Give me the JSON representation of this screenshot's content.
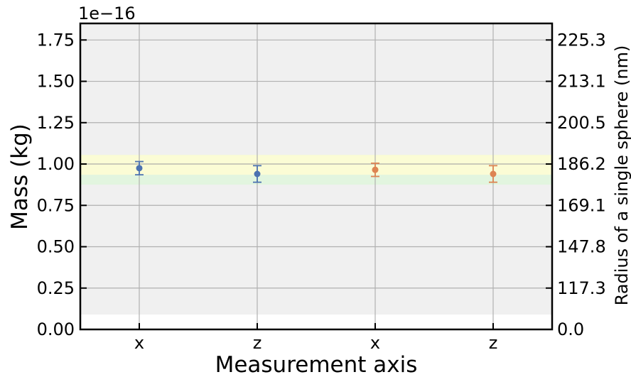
{
  "chart_data": {
    "type": "scatter",
    "title": "",
    "xlabel": "Measurement axis",
    "ylabel": "Mass (kg)",
    "y2label": "Radius of a single sphere (nm)",
    "offset_text": "1e−16",
    "categories": [
      "x",
      "z",
      "x",
      "z"
    ],
    "ylim": [
      0.0,
      1.85
    ],
    "yticks": [
      "0.00",
      "0.25",
      "0.50",
      "0.75",
      "1.00",
      "1.25",
      "1.50",
      "1.75"
    ],
    "y2ticks": [
      "0.0",
      "117.3",
      "147.8",
      "169.1",
      "186.2",
      "200.5",
      "213.1",
      "225.3"
    ],
    "grid": true,
    "series": [
      {
        "color": "#4c72b0",
        "points": [
          {
            "category_index": 0,
            "value": 0.975,
            "err": 0.04
          },
          {
            "category_index": 1,
            "value": 0.94,
            "err": 0.05
          }
        ]
      },
      {
        "color": "#dd8452",
        "points": [
          {
            "category_index": 2,
            "value": 0.965,
            "err": 0.04
          },
          {
            "category_index": 3,
            "value": 0.94,
            "err": 0.05
          }
        ]
      }
    ],
    "bands": [
      {
        "from": 0.09,
        "to": 1.85,
        "color": "#f0f0f0"
      },
      {
        "from": 0.875,
        "to": 1.055,
        "color": "#e2f5df"
      },
      {
        "from": 0.935,
        "to": 1.055,
        "color": "#fbfcd5"
      }
    ],
    "reference_line": {
      "value": 1.0,
      "color": "#e8e0a6"
    }
  }
}
